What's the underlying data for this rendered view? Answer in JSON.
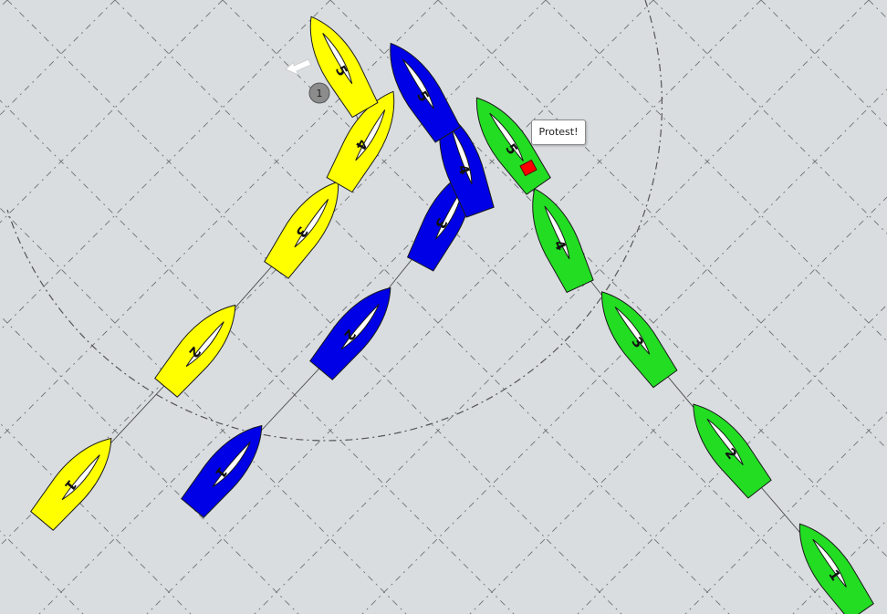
{
  "boats": [
    {
      "name": "yellow",
      "color": "#ffff00",
      "positions": [
        {
          "label": "1"
        },
        {
          "label": "2"
        },
        {
          "label": "3"
        },
        {
          "label": "4"
        },
        {
          "label": "5"
        }
      ]
    },
    {
      "name": "blue",
      "color": "#0000e6",
      "positions": [
        {
          "label": "1"
        },
        {
          "label": "2"
        },
        {
          "label": "3"
        },
        {
          "label": "4"
        },
        {
          "label": "5"
        }
      ]
    },
    {
      "name": "green",
      "color": "#22dd22",
      "positions": [
        {
          "label": "1"
        },
        {
          "label": "2"
        },
        {
          "label": "3"
        },
        {
          "label": "4"
        },
        {
          "label": "5"
        }
      ]
    }
  ],
  "mark": {
    "label": "1",
    "color": "#8c8c8c"
  },
  "protest": {
    "text": "Protest!",
    "flag_color": "#ff0000"
  },
  "wind_arrow": {
    "icon": "wind-arrow-icon"
  },
  "zone_circle": {
    "style": "dash-dot"
  },
  "grid": {
    "style": "dash-dot diagonal"
  }
}
